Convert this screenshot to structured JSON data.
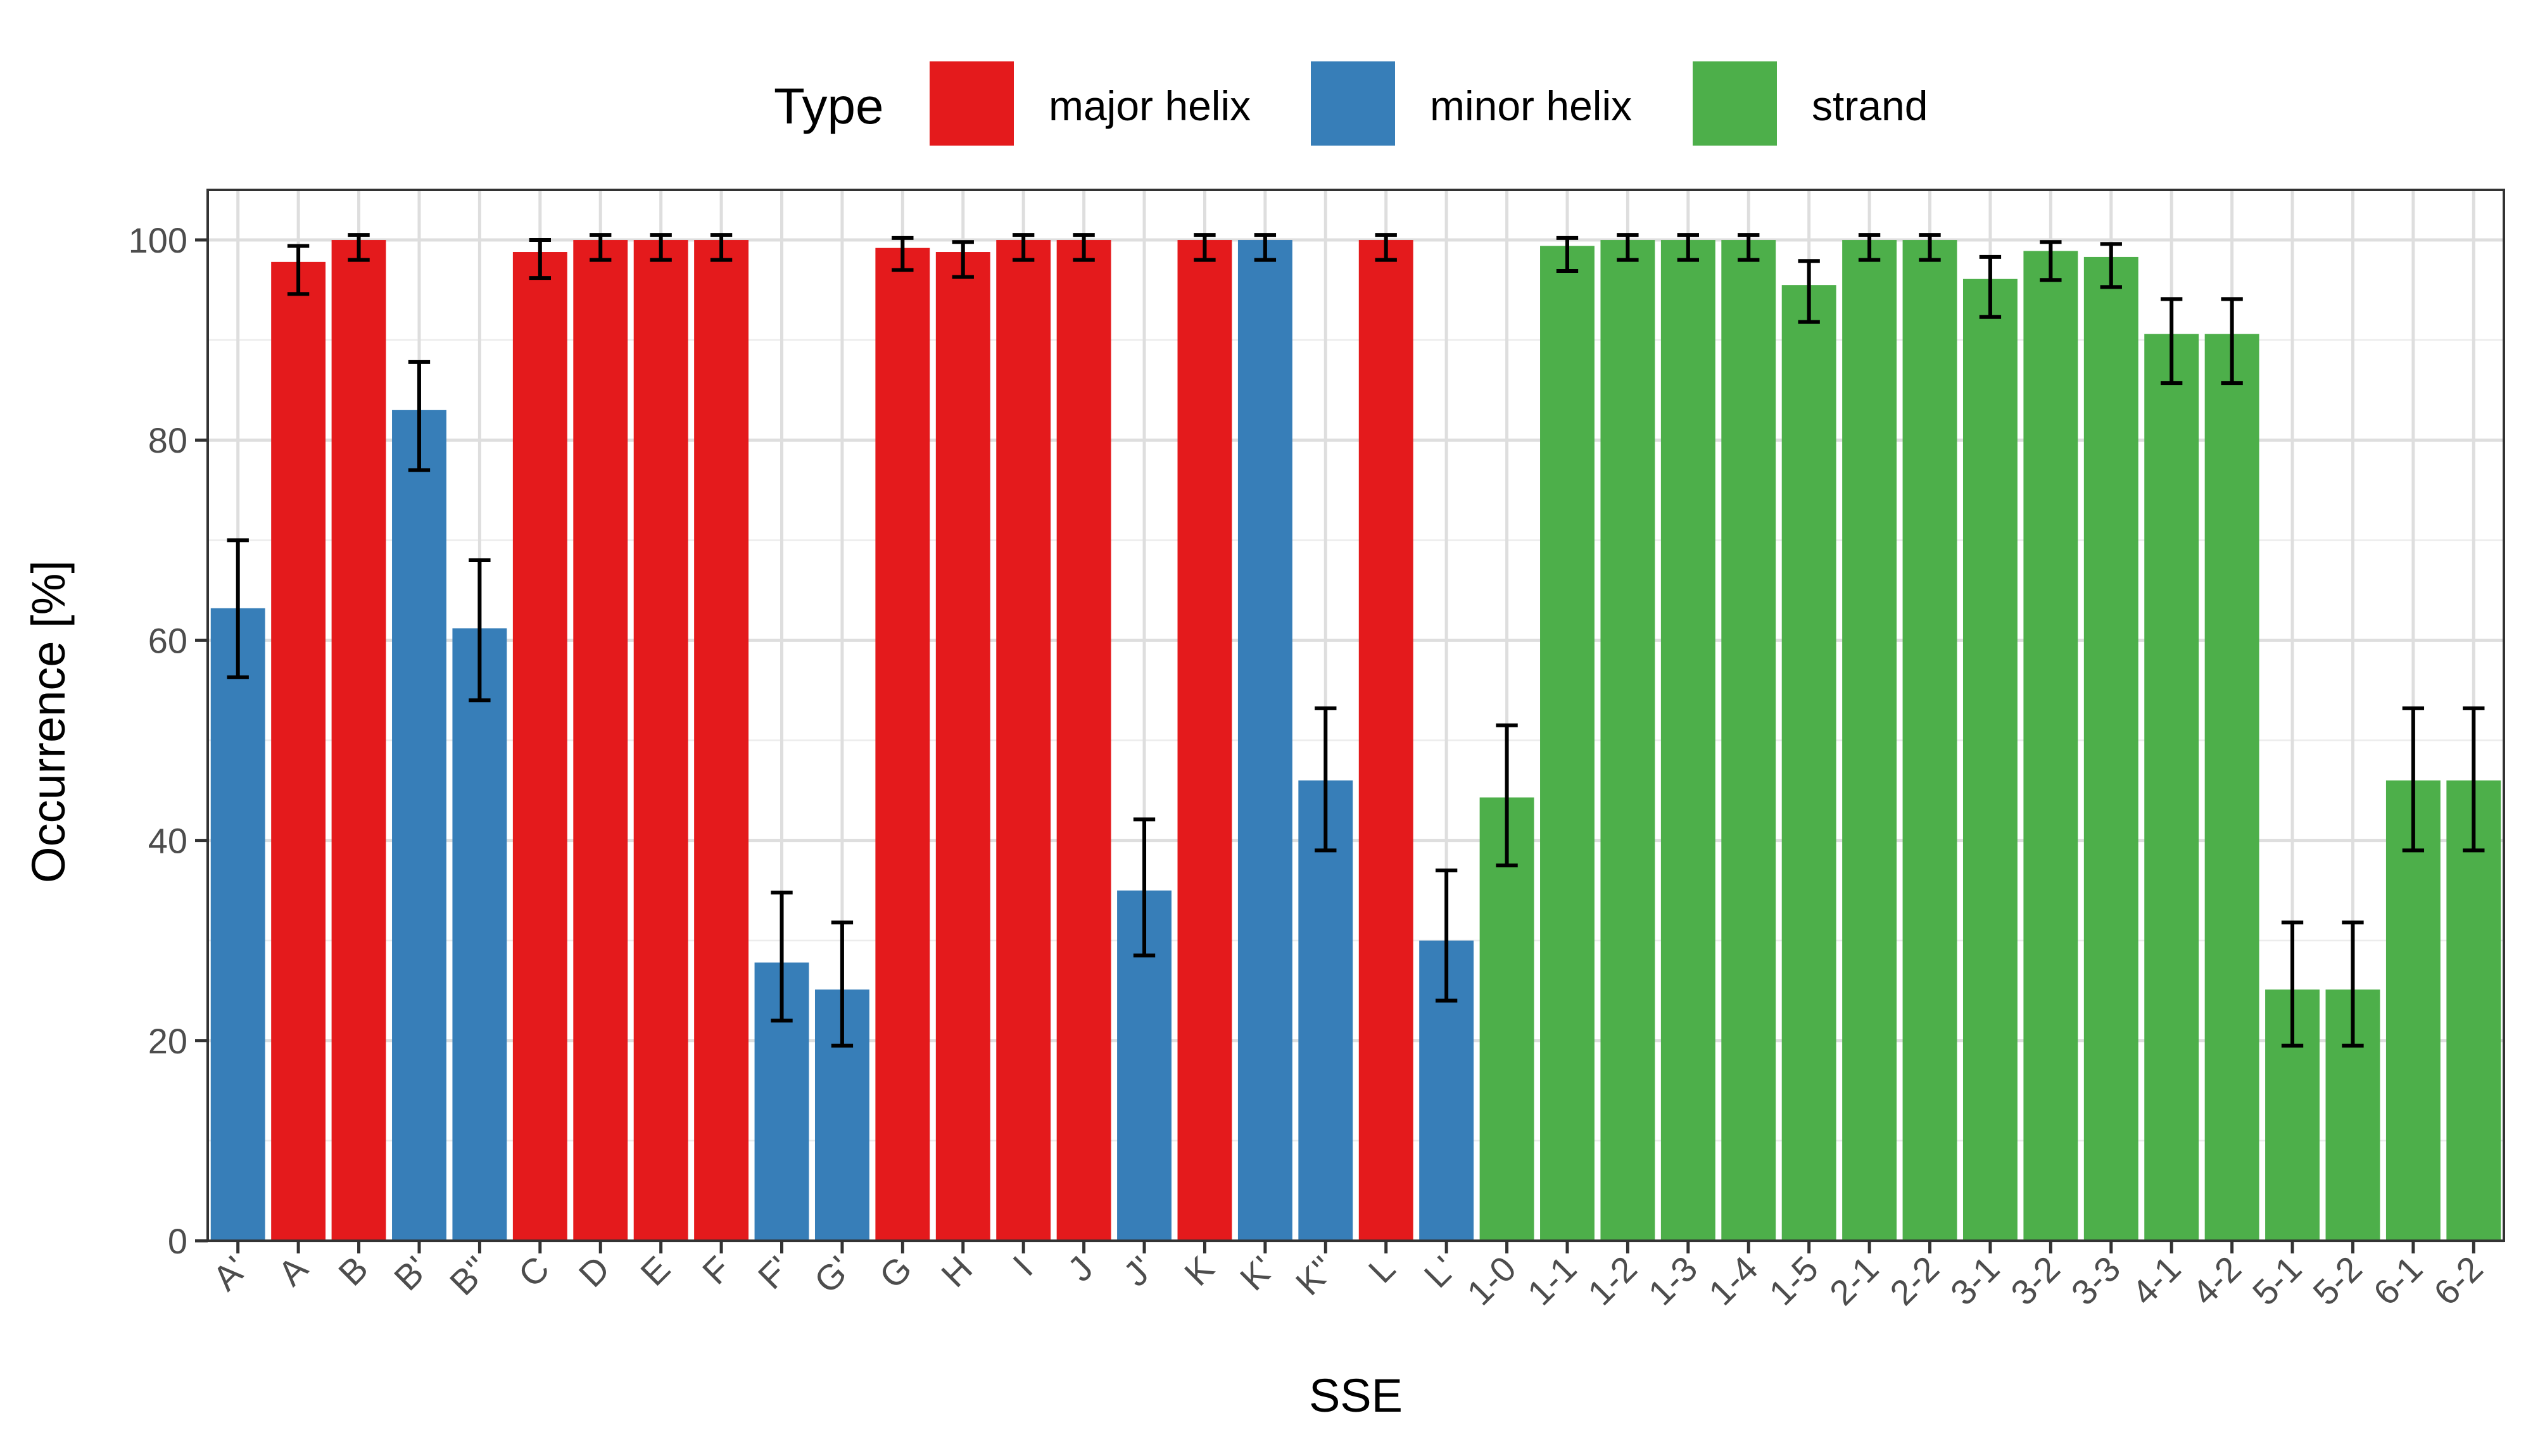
{
  "chart_data": {
    "type": "bar",
    "title": "",
    "xlabel": "SSE",
    "ylabel": "Occurrence [%]",
    "ylim": [
      0,
      105
    ],
    "yticks": [
      0,
      20,
      40,
      60,
      80,
      100
    ],
    "grid": true,
    "legend": {
      "title": "Type",
      "position": "top",
      "entries": [
        {
          "name": "major helix",
          "color": "#E41A1C"
        },
        {
          "name": "minor helix",
          "color": "#377EB8"
        },
        {
          "name": "strand",
          "color": "#4DAF4A"
        }
      ]
    },
    "bars": [
      {
        "category": "A'",
        "type": "minor helix",
        "value": 63.2,
        "err_low": 56.3,
        "err_high": 70.0
      },
      {
        "category": "A",
        "type": "major helix",
        "value": 97.8,
        "err_low": 94.6,
        "err_high": 99.4
      },
      {
        "category": "B",
        "type": "major helix",
        "value": 100.0,
        "err_low": 98.0,
        "err_high": 100.5
      },
      {
        "category": "B'",
        "type": "minor helix",
        "value": 83.0,
        "err_low": 77.0,
        "err_high": 87.8
      },
      {
        "category": "B''",
        "type": "minor helix",
        "value": 61.2,
        "err_low": 54.0,
        "err_high": 68.0
      },
      {
        "category": "C",
        "type": "major helix",
        "value": 98.8,
        "err_low": 96.2,
        "err_high": 100.0
      },
      {
        "category": "D",
        "type": "major helix",
        "value": 100.0,
        "err_low": 98.0,
        "err_high": 100.5
      },
      {
        "category": "E",
        "type": "major helix",
        "value": 100.0,
        "err_low": 98.0,
        "err_high": 100.5
      },
      {
        "category": "F",
        "type": "major helix",
        "value": 100.0,
        "err_low": 98.0,
        "err_high": 100.5
      },
      {
        "category": "F'",
        "type": "minor helix",
        "value": 27.8,
        "err_low": 22.0,
        "err_high": 34.8
      },
      {
        "category": "G'",
        "type": "minor helix",
        "value": 25.1,
        "err_low": 19.5,
        "err_high": 31.8
      },
      {
        "category": "G",
        "type": "major helix",
        "value": 99.2,
        "err_low": 97.0,
        "err_high": 100.2
      },
      {
        "category": "H",
        "type": "major helix",
        "value": 98.8,
        "err_low": 96.3,
        "err_high": 99.8
      },
      {
        "category": "I",
        "type": "major helix",
        "value": 100.0,
        "err_low": 98.0,
        "err_high": 100.5
      },
      {
        "category": "J",
        "type": "major helix",
        "value": 100.0,
        "err_low": 98.0,
        "err_high": 100.5
      },
      {
        "category": "J'",
        "type": "minor helix",
        "value": 35.0,
        "err_low": 28.5,
        "err_high": 42.1
      },
      {
        "category": "K",
        "type": "major helix",
        "value": 100.0,
        "err_low": 98.0,
        "err_high": 100.5
      },
      {
        "category": "K'",
        "type": "minor helix",
        "value": 100.0,
        "err_low": 98.0,
        "err_high": 100.5
      },
      {
        "category": "K''",
        "type": "minor helix",
        "value": 46.0,
        "err_low": 39.0,
        "err_high": 53.2
      },
      {
        "category": "L",
        "type": "major helix",
        "value": 100.0,
        "err_low": 98.0,
        "err_high": 100.5
      },
      {
        "category": "L'",
        "type": "minor helix",
        "value": 30.0,
        "err_low": 24.0,
        "err_high": 37.0
      },
      {
        "category": "1-0",
        "type": "strand",
        "value": 44.3,
        "err_low": 37.5,
        "err_high": 51.5
      },
      {
        "category": "1-1",
        "type": "strand",
        "value": 99.4,
        "err_low": 96.9,
        "err_high": 100.2
      },
      {
        "category": "1-2",
        "type": "strand",
        "value": 100.0,
        "err_low": 98.0,
        "err_high": 100.5
      },
      {
        "category": "1-3",
        "type": "strand",
        "value": 100.0,
        "err_low": 98.0,
        "err_high": 100.5
      },
      {
        "category": "1-4",
        "type": "strand",
        "value": 100.0,
        "err_low": 98.0,
        "err_high": 100.5
      },
      {
        "category": "1-5",
        "type": "strand",
        "value": 95.5,
        "err_low": 91.8,
        "err_high": 97.9
      },
      {
        "category": "2-1",
        "type": "strand",
        "value": 100.0,
        "err_low": 98.0,
        "err_high": 100.5
      },
      {
        "category": "2-2",
        "type": "strand",
        "value": 100.0,
        "err_low": 98.0,
        "err_high": 100.5
      },
      {
        "category": "3-1",
        "type": "strand",
        "value": 96.1,
        "err_low": 92.3,
        "err_high": 98.3
      },
      {
        "category": "3-2",
        "type": "strand",
        "value": 98.9,
        "err_low": 96.0,
        "err_high": 99.8
      },
      {
        "category": "3-3",
        "type": "strand",
        "value": 98.3,
        "err_low": 95.3,
        "err_high": 99.6
      },
      {
        "category": "4-1",
        "type": "strand",
        "value": 90.6,
        "err_low": 85.7,
        "err_high": 94.1
      },
      {
        "category": "4-2",
        "type": "strand",
        "value": 90.6,
        "err_low": 85.7,
        "err_high": 94.1
      },
      {
        "category": "5-1",
        "type": "strand",
        "value": 25.1,
        "err_low": 19.5,
        "err_high": 31.8
      },
      {
        "category": "5-2",
        "type": "strand",
        "value": 25.1,
        "err_low": 19.5,
        "err_high": 31.8
      },
      {
        "category": "6-1",
        "type": "strand",
        "value": 46.0,
        "err_low": 39.0,
        "err_high": 53.2
      },
      {
        "category": "6-2",
        "type": "strand",
        "value": 46.0,
        "err_low": 39.0,
        "err_high": 53.2
      }
    ]
  }
}
